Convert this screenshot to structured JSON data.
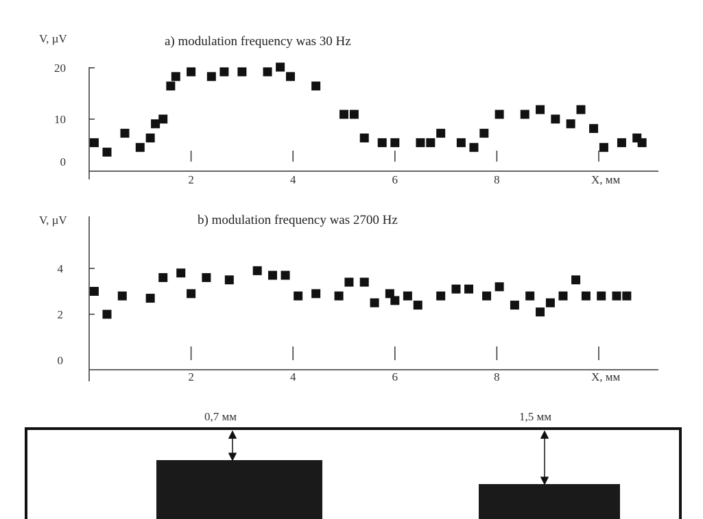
{
  "chart_data": [
    {
      "type": "scatter",
      "title": "a) modulation frequency was 30 Hz",
      "ylabel": "V, µV",
      "xlabel": "X, мм",
      "xlim": [
        0,
        11.2
      ],
      "ylim": [
        0,
        20
      ],
      "x_ticks": [
        "2",
        "4",
        "6",
        "8"
      ],
      "y_ticks": [
        "0",
        "10",
        "20"
      ],
      "x": [
        0.1,
        0.35,
        0.7,
        1.0,
        1.2,
        1.3,
        1.45,
        1.6,
        1.7,
        2.0,
        2.4,
        2.65,
        3.0,
        3.5,
        3.75,
        3.95,
        4.45,
        5.0,
        5.2,
        5.4,
        5.75,
        6.0,
        6.5,
        6.7,
        6.9,
        7.3,
        7.55,
        7.75,
        8.05,
        8.55,
        8.85,
        9.15,
        9.45,
        9.65,
        9.9,
        10.1,
        10.45,
        10.75,
        10.85
      ],
      "y": [
        4,
        2,
        6,
        3,
        5,
        8,
        9,
        16,
        18,
        19,
        18,
        19,
        19,
        19,
        20,
        18,
        16,
        10,
        10,
        5,
        4,
        4,
        4,
        4,
        6,
        4,
        3,
        6,
        10,
        10,
        11,
        9,
        8,
        11,
        7,
        3,
        4,
        5,
        4
      ]
    },
    {
      "type": "scatter",
      "title": "b) modulation frequency was 2700 Hz",
      "ylabel": "V, µV",
      "xlabel": "X, мм",
      "xlim": [
        0,
        11.2
      ],
      "ylim": [
        0,
        5
      ],
      "x_ticks": [
        "2",
        "4",
        "6",
        "8"
      ],
      "y_ticks": [
        "0",
        "2",
        "4"
      ],
      "x": [
        0.1,
        0.35,
        0.65,
        1.2,
        1.45,
        1.8,
        2.0,
        2.3,
        2.75,
        3.3,
        3.6,
        3.85,
        4.1,
        4.45,
        4.9,
        5.1,
        5.4,
        5.6,
        5.9,
        6.0,
        6.25,
        6.45,
        6.9,
        7.2,
        7.45,
        7.8,
        8.05,
        8.35,
        8.65,
        8.85,
        9.05,
        9.3,
        9.55,
        9.75,
        10.05,
        10.35,
        10.55
      ],
      "y": [
        3,
        2,
        2.8,
        2.7,
        3.6,
        3.8,
        2.9,
        3.6,
        3.5,
        3.9,
        3.7,
        3.7,
        2.8,
        2.9,
        2.8,
        3.4,
        3.4,
        2.5,
        2.9,
        2.6,
        2.8,
        2.4,
        2.8,
        3.1,
        3.1,
        2.8,
        3.2,
        2.4,
        2.8,
        2.1,
        2.5,
        2.8,
        3.5,
        2.8,
        2.8,
        2.8,
        2.8
      ]
    }
  ],
  "sample": {
    "gap_left_label": "0,7 мм",
    "gap_right_label": "1,5 мм"
  }
}
